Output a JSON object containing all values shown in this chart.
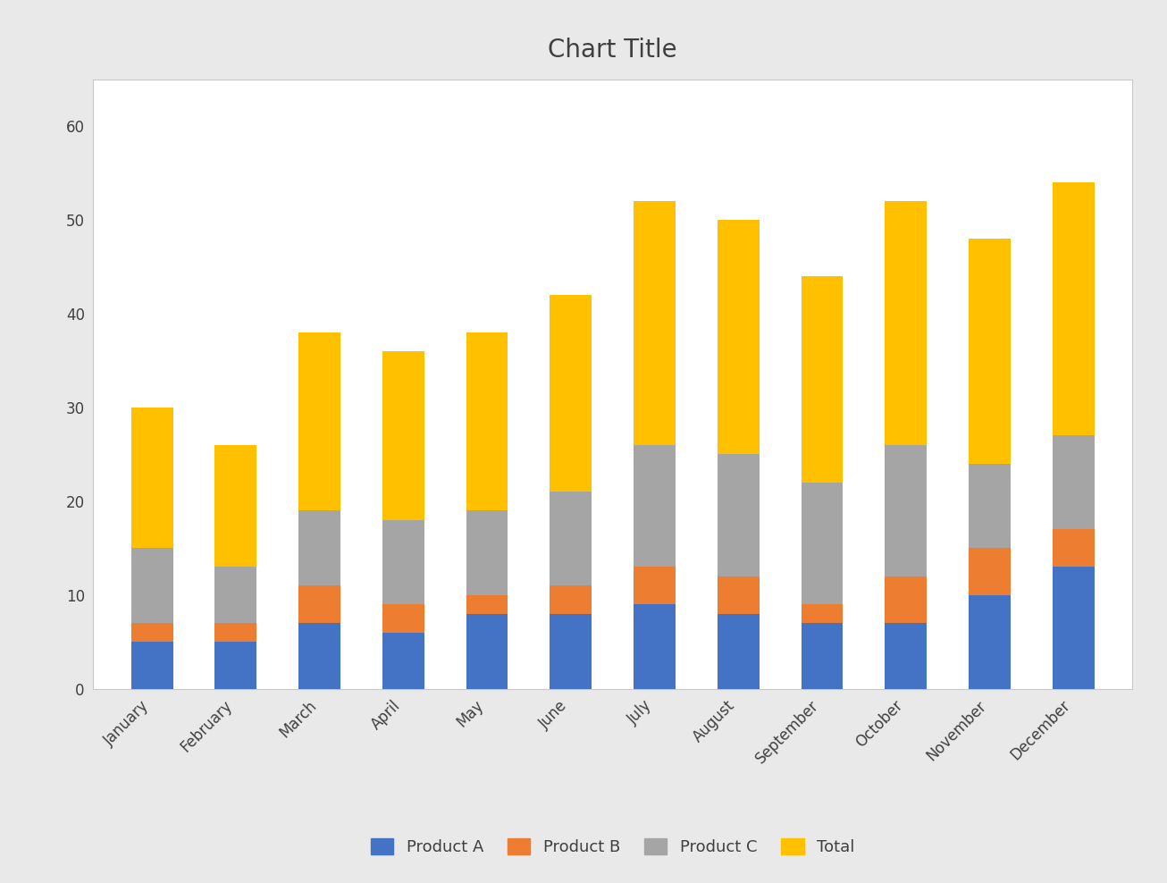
{
  "months": [
    "January",
    "February",
    "March",
    "April",
    "May",
    "June",
    "July",
    "August",
    "September",
    "October",
    "November",
    "December"
  ],
  "product_a": [
    5,
    5,
    7,
    6,
    8,
    8,
    9,
    8,
    7,
    7,
    10,
    13
  ],
  "product_b": [
    2,
    2,
    4,
    3,
    2,
    3,
    4,
    4,
    2,
    5,
    5,
    4
  ],
  "product_c": [
    8,
    6,
    8,
    9,
    9,
    10,
    13,
    13,
    13,
    14,
    9,
    10
  ],
  "totals": [
    30,
    26,
    38,
    36,
    38,
    42,
    52,
    50,
    44,
    52,
    48,
    54
  ],
  "color_a": "#4472C4",
  "color_b": "#ED7D31",
  "color_c": "#A5A5A5",
  "color_total": "#FFC000",
  "title": "Chart Title",
  "title_fontsize": 20,
  "ylim": [
    0,
    65
  ],
  "yticks": [
    0,
    10,
    20,
    30,
    40,
    50,
    60
  ],
  "legend_labels": [
    "Product A",
    "Product B",
    "Product C",
    "Total"
  ],
  "plot_bg_color": "#FFFFFF",
  "fig_bg_color": "#E9E9E9",
  "grid_color": "#FFFFFF",
  "outer_grid_color": "#C8C8C8",
  "bar_width": 0.5
}
